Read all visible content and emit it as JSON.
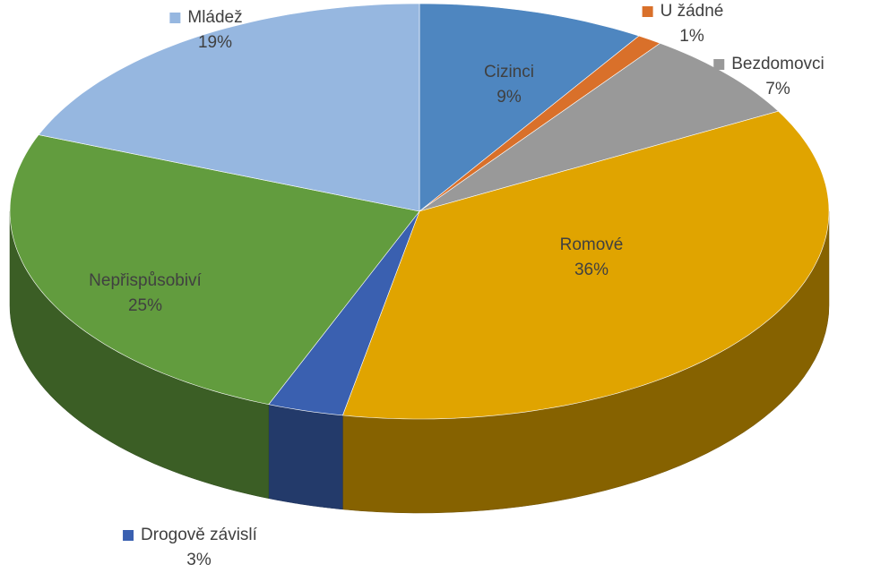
{
  "chart_data": {
    "type": "pie",
    "categories": [
      "Cizinci",
      "U žádné",
      "Bezdomovci",
      "Romové",
      "Drogově závislí",
      "Nepřispůsobiví",
      "Mládež"
    ],
    "values": [
      9,
      1,
      7,
      36,
      3,
      25,
      19
    ],
    "value_labels": [
      "9%",
      "1%",
      "7%",
      "36%",
      "3%",
      "25%",
      "19%"
    ],
    "colors": [
      "#4e86c0",
      "#d9702a",
      "#999999",
      "#e0a400",
      "#3a60b0",
      "#629c3e",
      "#96b7e0"
    ]
  }
}
